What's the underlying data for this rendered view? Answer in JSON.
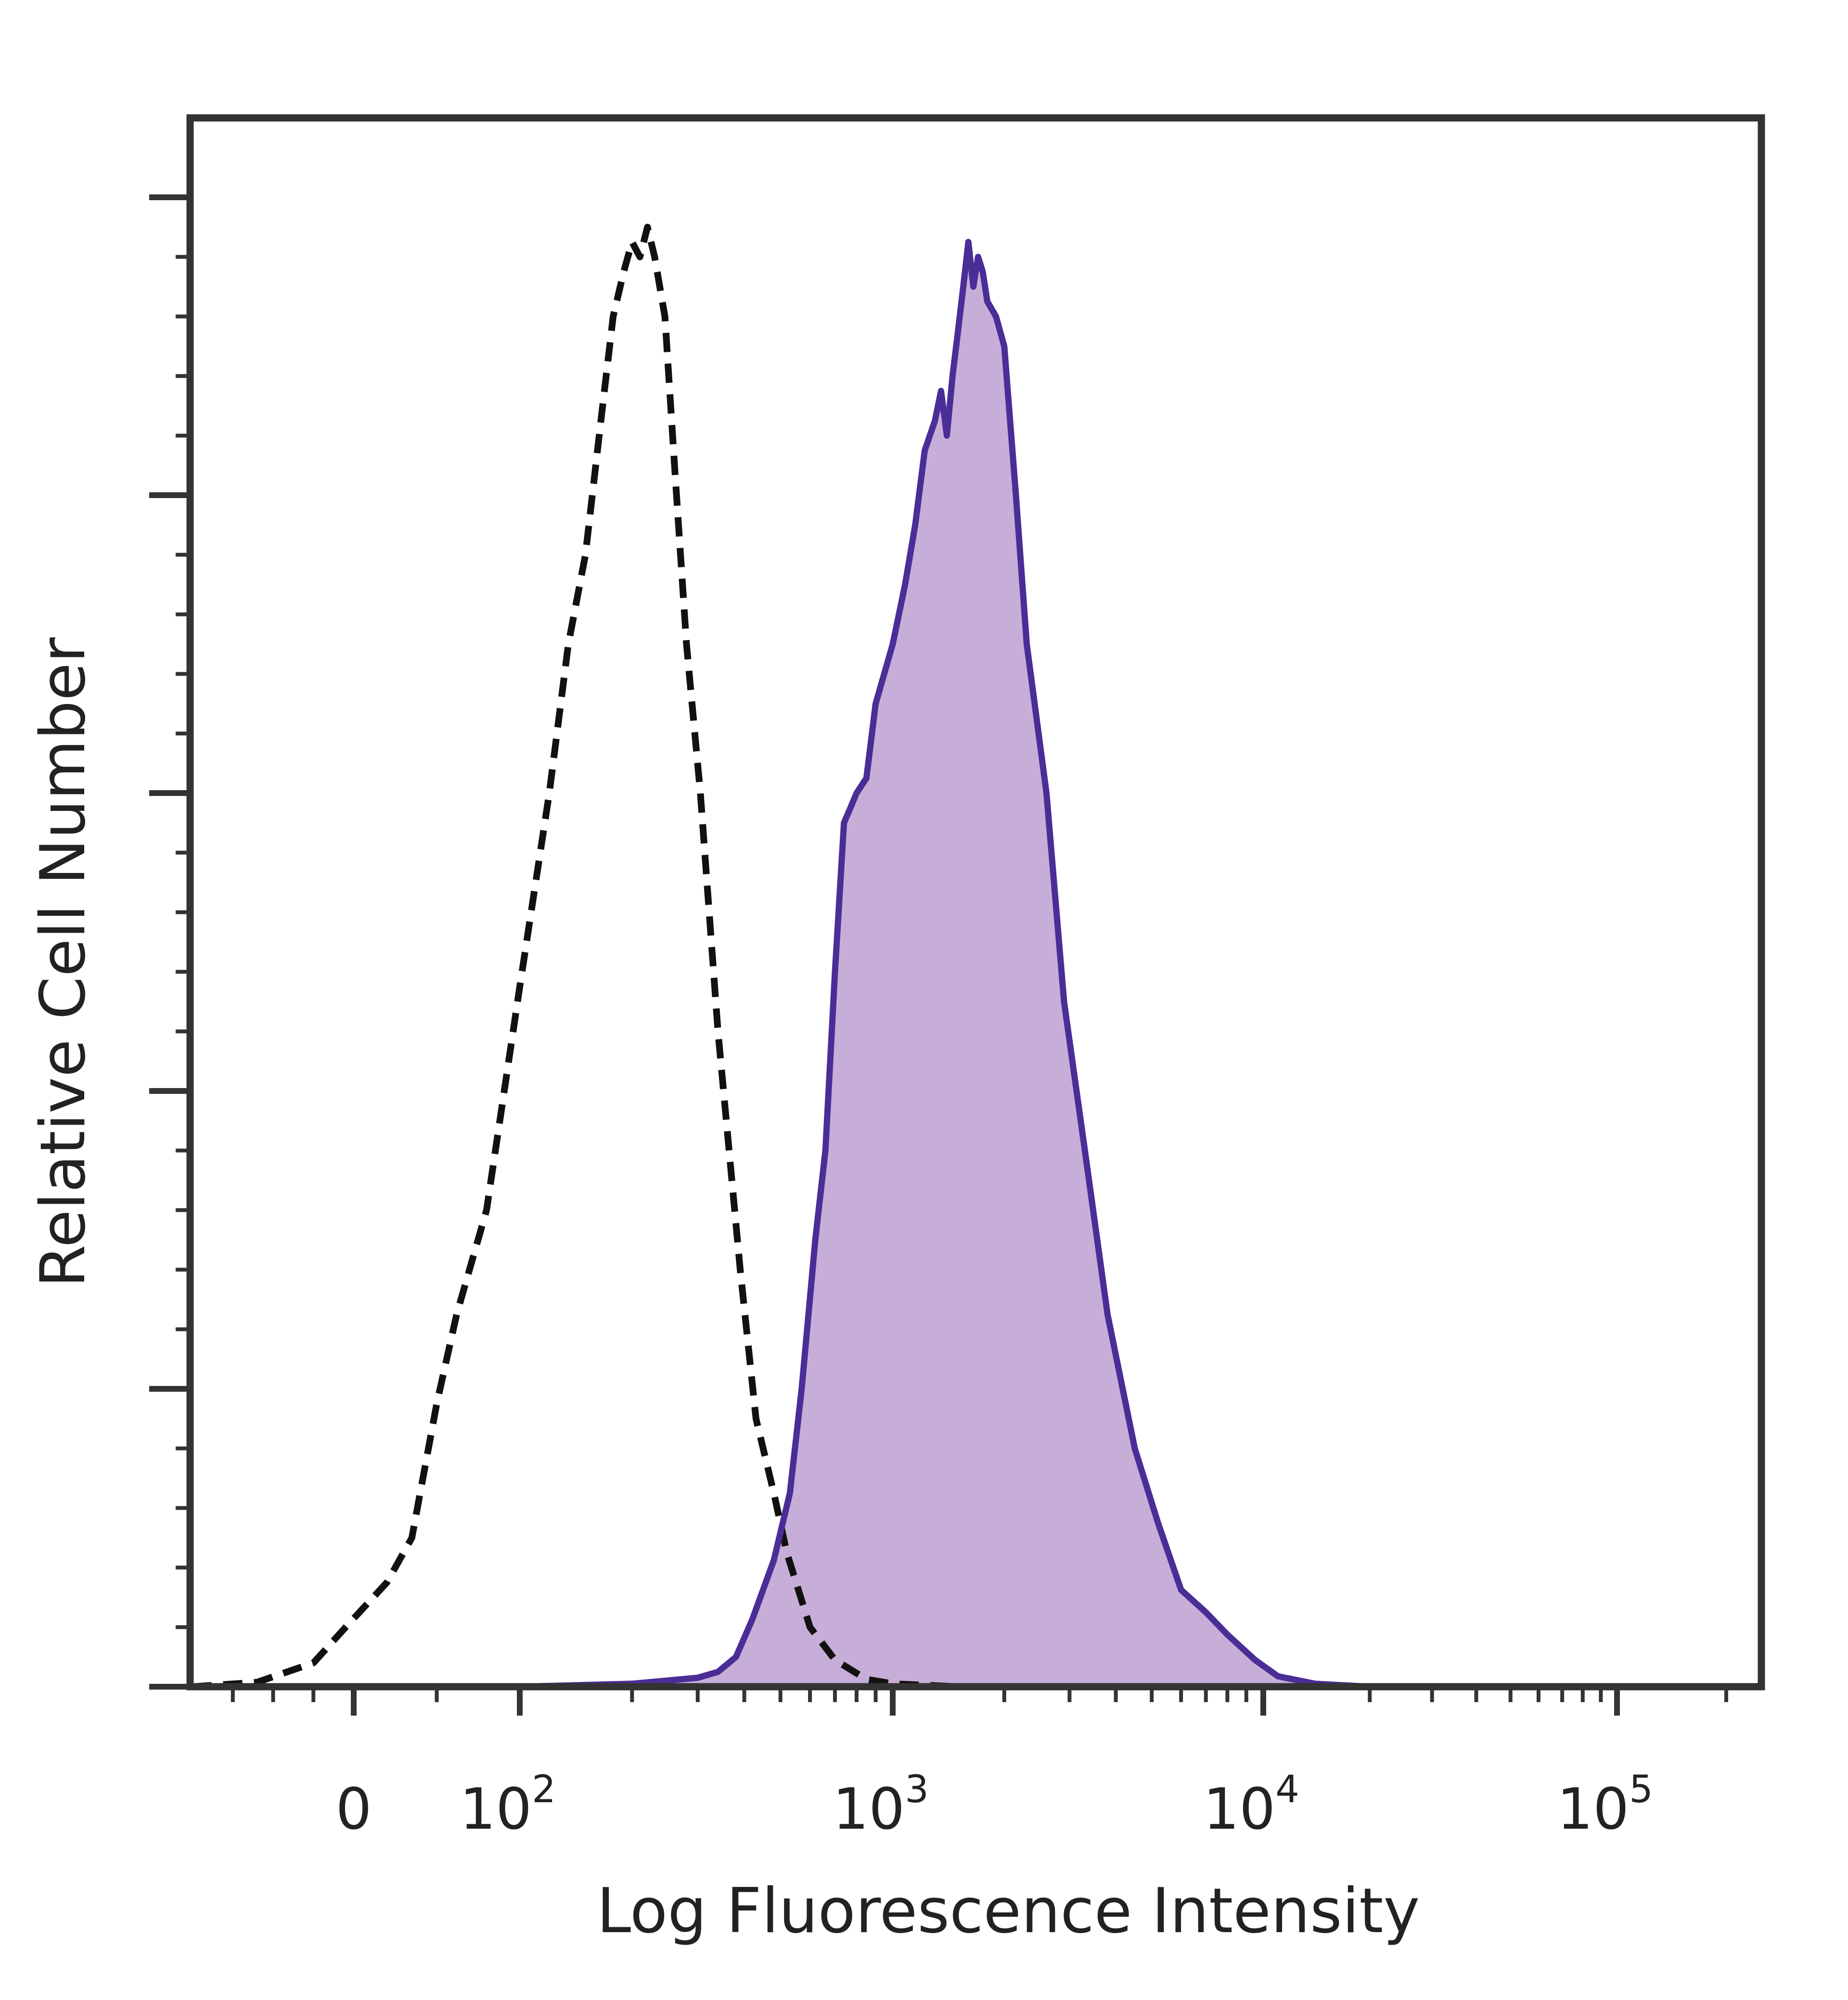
{
  "chart_data": {
    "type": "area",
    "title": "",
    "xlabel": "Log Fluorescence Intensity",
    "ylabel": "Relative Cell Number",
    "x_scale": "biexponential",
    "xlim": [
      -200,
      250000
    ],
    "ylim": [
      0,
      100
    ],
    "x_tick_labels": [
      {
        "value": 0,
        "base": "0",
        "exp": ""
      },
      {
        "value": 100,
        "base": "10",
        "exp": "2"
      },
      {
        "value": 1000,
        "base": "10",
        "exp": "3"
      },
      {
        "value": 10000,
        "base": "10",
        "exp": "4"
      },
      {
        "value": 100000,
        "base": "10",
        "exp": "5"
      }
    ],
    "grid": false,
    "legend": "none",
    "series": [
      {
        "style": "dashed",
        "fill": false,
        "color": "#111111",
        "points": [
          [
            -200,
            0
          ],
          [
            -120,
            0.3
          ],
          [
            -50,
            1.6
          ],
          [
            -10,
            4
          ],
          [
            20,
            7
          ],
          [
            35,
            10
          ],
          [
            50,
            19
          ],
          [
            62,
            25
          ],
          [
            80,
            32
          ],
          [
            100,
            47
          ],
          [
            120,
            60
          ],
          [
            135,
            70
          ],
          [
            150,
            76
          ],
          [
            165,
            85
          ],
          [
            178,
            92
          ],
          [
            190,
            95
          ],
          [
            200,
            97
          ],
          [
            210,
            96
          ],
          [
            220,
            98
          ],
          [
            230,
            96
          ],
          [
            245,
            92
          ],
          [
            260,
            82
          ],
          [
            280,
            70
          ],
          [
            305,
            60
          ],
          [
            340,
            44
          ],
          [
            390,
            28
          ],
          [
            430,
            18
          ],
          [
            480,
            13
          ],
          [
            520,
            9
          ],
          [
            600,
            4
          ],
          [
            700,
            1.8
          ],
          [
            850,
            0.5
          ],
          [
            1000,
            0.2
          ],
          [
            1500,
            0
          ],
          [
            250000,
            0
          ]
        ]
      },
      {
        "style": "solid",
        "fill": true,
        "color": "#4a2d96",
        "fill_color": "#c6aed8",
        "points": [
          [
            -200,
            0
          ],
          [
            100,
            0
          ],
          [
            200,
            0.2
          ],
          [
            300,
            0.6
          ],
          [
            340,
            1
          ],
          [
            380,
            2
          ],
          [
            420,
            4.5
          ],
          [
            480,
            8.5
          ],
          [
            530,
            13
          ],
          [
            570,
            20
          ],
          [
            620,
            30
          ],
          [
            660,
            36
          ],
          [
            700,
            48
          ],
          [
            740,
            58
          ],
          [
            770,
            59
          ],
          [
            800,
            60
          ],
          [
            850,
            61
          ],
          [
            900,
            66
          ],
          [
            1000,
            70
          ],
          [
            1080,
            74
          ],
          [
            1150,
            78
          ],
          [
            1220,
            83
          ],
          [
            1300,
            85
          ],
          [
            1350,
            87
          ],
          [
            1400,
            84
          ],
          [
            1450,
            88
          ],
          [
            1500,
            91
          ],
          [
            1550,
            94
          ],
          [
            1600,
            97
          ],
          [
            1650,
            94
          ],
          [
            1700,
            96
          ],
          [
            1750,
            95
          ],
          [
            1800,
            93
          ],
          [
            1900,
            92
          ],
          [
            2000,
            90
          ],
          [
            2150,
            80
          ],
          [
            2300,
            70
          ],
          [
            2600,
            60
          ],
          [
            2900,
            46
          ],
          [
            3300,
            36
          ],
          [
            3800,
            25
          ],
          [
            4500,
            16
          ],
          [
            5200,
            11
          ],
          [
            6000,
            6.5
          ],
          [
            7000,
            5
          ],
          [
            8000,
            3.5
          ],
          [
            9500,
            1.8
          ],
          [
            11000,
            0.7
          ],
          [
            14000,
            0.2
          ],
          [
            20000,
            0
          ],
          [
            250000,
            0
          ]
        ]
      }
    ]
  },
  "colors": {
    "frame": "#333333",
    "dashed_line": "#111111",
    "histogram_outline": "#4a2d96",
    "histogram_fill": "#c6aed8"
  }
}
